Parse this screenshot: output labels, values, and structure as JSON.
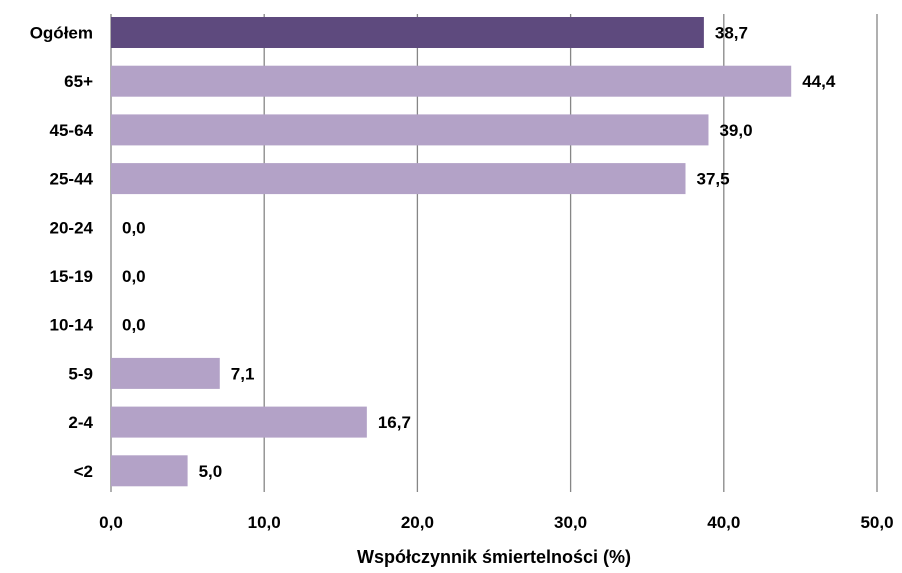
{
  "chart_data": {
    "type": "bar",
    "orientation": "horizontal",
    "categories": [
      "Ogółem",
      "65+",
      "45-64",
      "25-44",
      "20-24",
      "15-19",
      "10-14",
      "5-9",
      "2-4",
      "<2"
    ],
    "values": [
      38.7,
      44.4,
      39.0,
      37.5,
      0.0,
      0.0,
      0.0,
      7.1,
      16.7,
      5.0
    ],
    "value_labels": [
      "38,7",
      "44,4",
      "39,0",
      "37,5",
      "0,0",
      "0,0",
      "0,0",
      "7,1",
      "16,7",
      "5,0"
    ],
    "highlight_index": 0,
    "xlabel": "Współczynnik śmiertelności (%)",
    "xlim": [
      0,
      50
    ],
    "xticks": [
      0,
      10,
      20,
      30,
      40,
      50
    ],
    "xtick_labels": [
      "0,0",
      "10,0",
      "20,0",
      "30,0",
      "40,0",
      "50,0"
    ],
    "grid": "vertical",
    "legend": "none",
    "colors": {
      "highlight": "#5E4A7E",
      "bar": "#B3A2C7",
      "grid": "#868686",
      "text": "#000000"
    }
  }
}
